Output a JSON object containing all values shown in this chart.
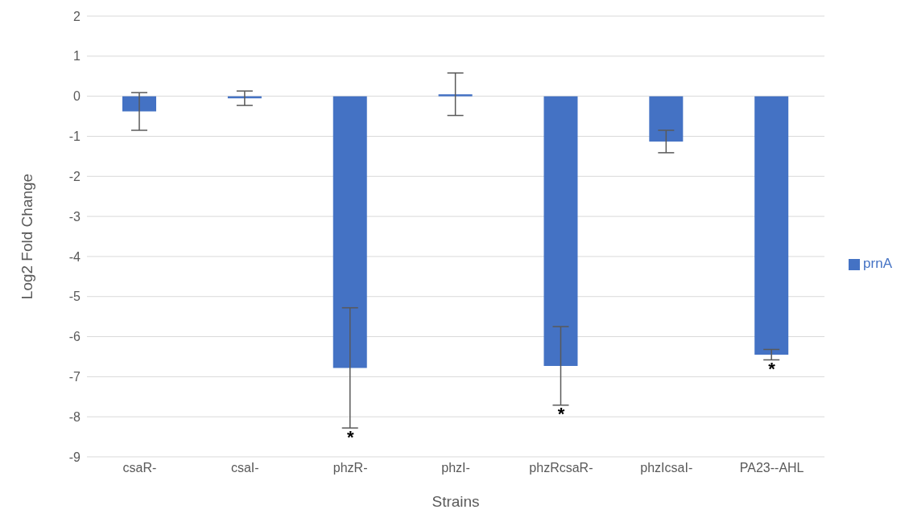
{
  "chart_data": {
    "type": "bar",
    "xlabel": "Strains",
    "ylabel": "Log2 Fold Change",
    "categories": [
      "csaR-",
      "csaI-",
      "phzR-",
      "phzI-",
      "phzRcsaR-",
      "phzIcsaI-",
      "PA23--AHL"
    ],
    "series": [
      {
        "name": "prnA",
        "color": "#4472c4",
        "values": [
          -0.38,
          -0.05,
          -6.78,
          0.05,
          -6.73,
          -1.13,
          -6.45
        ],
        "errors": [
          0.47,
          0.18,
          1.5,
          0.53,
          0.98,
          0.28,
          0.13
        ]
      }
    ],
    "ylim": [
      -9,
      2
    ],
    "yticks": [
      -9,
      -8,
      -7,
      -6,
      -5,
      -4,
      -3,
      -2,
      -1,
      0,
      1,
      2
    ],
    "grid": "y",
    "legend": "right",
    "annotations": [
      {
        "text": "*",
        "x": "phzR-",
        "y": -8.28
      },
      {
        "text": "*",
        "x": "phzRcsaR-",
        "y": -7.71
      },
      {
        "text": "*",
        "x": "PA23--AHL",
        "y": -6.58
      }
    ]
  }
}
